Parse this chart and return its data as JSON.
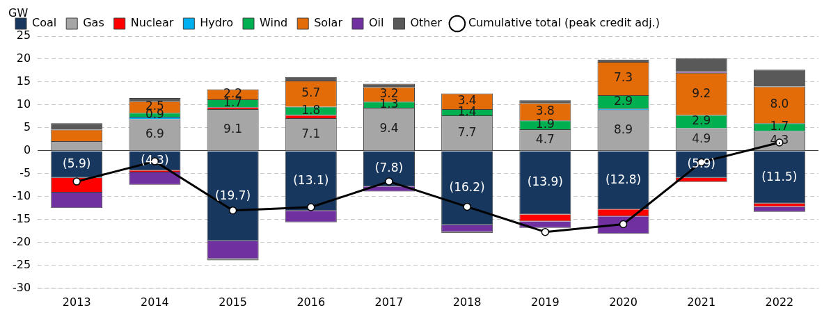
{
  "chart_data": {
    "type": "bar",
    "stacked": true,
    "ylabel": "GW",
    "categories": [
      "2013",
      "2014",
      "2015",
      "2016",
      "2017",
      "2018",
      "2019",
      "2020",
      "2021",
      "2022"
    ],
    "ylim": [
      -30,
      25
    ],
    "yticks": [
      -30,
      -25,
      -20,
      -15,
      -10,
      -5,
      0,
      5,
      10,
      15,
      20,
      25
    ],
    "grid": "y",
    "legend": "top",
    "series": [
      {
        "name": "Coal",
        "color": "#17375e",
        "values": [
          -5.9,
          -4.3,
          -19.7,
          -13.1,
          -7.8,
          -16.2,
          -13.9,
          -12.8,
          -5.9,
          -11.5
        ],
        "value_labels": [
          "(5.9)",
          "(4.3)",
          "(19.7)",
          "(13.1)",
          "(7.8)",
          "(16.2)",
          "(13.9)",
          "(12.8)",
          "(5.9)",
          "(11.5)"
        ]
      },
      {
        "name": "Gas",
        "color": "#a6a6a6",
        "values": [
          2.1,
          6.9,
          9.1,
          7.1,
          9.4,
          7.7,
          4.7,
          8.9,
          4.9,
          4.3
        ],
        "value_labels": [
          null,
          "6.9",
          "9.1",
          "7.1",
          "9.4",
          "7.7",
          "4.7",
          "8.9",
          "4.9",
          "4.3"
        ]
      },
      {
        "name": "Nuclear",
        "color": "#ff0000",
        "values": [
          -3.2,
          -0.4,
          0.4,
          0.7,
          null,
          null,
          -1.5,
          -1.5,
          -0.9,
          -0.7
        ]
      },
      {
        "name": "Hydro",
        "color": "#00b0f0",
        "values": [
          null,
          0.5,
          null,
          null,
          null,
          null,
          null,
          0.3,
          null,
          null
        ]
      },
      {
        "name": "Wind",
        "color": "#00b050",
        "values": [
          null,
          0.9,
          1.7,
          1.8,
          1.3,
          1.4,
          1.9,
          2.9,
          2.9,
          1.7
        ],
        "value_labels": [
          null,
          "0.9",
          "1.7",
          "1.8",
          "1.3",
          "1.4",
          "1.9",
          "2.9",
          "2.9",
          "1.7"
        ]
      },
      {
        "name": "Solar",
        "color": "#e36c09",
        "values": [
          2.5,
          2.5,
          2.2,
          5.7,
          3.2,
          3.4,
          3.8,
          7.3,
          9.2,
          8.0
        ],
        "value_labels": [
          null,
          "2.5",
          "2.2",
          "5.7",
          "3.2",
          "3.4",
          "3.8",
          "7.3",
          "9.2",
          "8.0"
        ]
      },
      {
        "name": "Oil",
        "color": "#7030a0",
        "values": [
          -3.4,
          -2.7,
          -3.9,
          -2.5,
          -1.1,
          -1.5,
          -1.4,
          -3.8,
          0.3,
          -1.1
        ]
      },
      {
        "name": "Other",
        "color": "#595959",
        "values": [
          1.4,
          0.7,
          -0.3,
          0.8,
          0.7,
          -0.2,
          0.6,
          0.5,
          2.9,
          3.7
        ]
      },
      {
        "name": "Cumulative total (peak credit adj.)",
        "type": "line",
        "color": "#000000",
        "marker": "circle",
        "values": [
          -6.7,
          -2.3,
          -13.0,
          -12.3,
          -6.7,
          -12.2,
          -17.7,
          -16.0,
          -2.5,
          1.8
        ]
      }
    ]
  }
}
